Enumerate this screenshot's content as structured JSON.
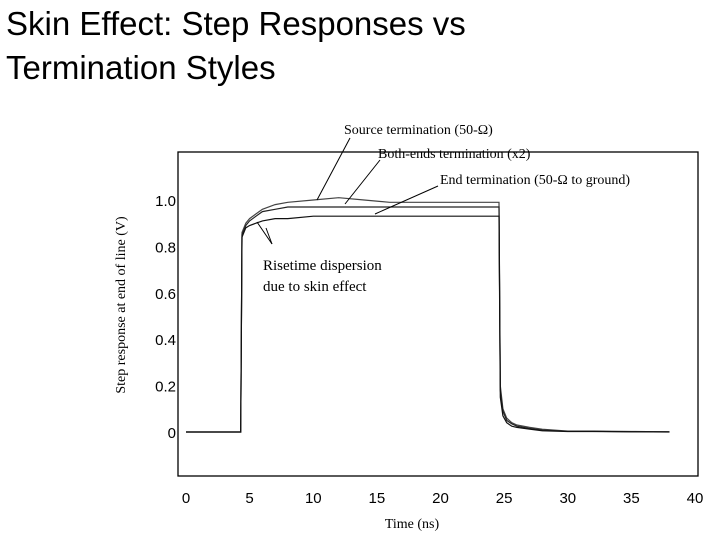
{
  "slide": {
    "title_line1": "Skin Effect: Step Responses vs",
    "title_line2": "Termination Styles"
  },
  "chart_data": {
    "type": "line",
    "xlabel": "Time (ns)",
    "ylabel": "Step response at end of line  (V)",
    "xlim": [
      0,
      40
    ],
    "ylim": [
      -0.15,
      1.2
    ],
    "x_ticks": [
      "0",
      "5",
      "10",
      "15",
      "20",
      "25",
      "30",
      "35",
      "40"
    ],
    "y_ticks": [
      "0",
      "0.2",
      "0.4",
      "0.6",
      "0.8",
      "1.0"
    ],
    "grid": false,
    "annotations": [
      {
        "text": "Source termination (50-Ω)"
      },
      {
        "text": "Both-ends termination (x2)"
      },
      {
        "text": "End termination (50-Ω to ground)"
      },
      {
        "text": "Risetime dispersion"
      },
      {
        "text": "due to skin effect"
      }
    ],
    "series": [
      {
        "x": [
          0,
          4.3,
          4.4,
          4.7,
          5,
          5.5,
          6,
          7,
          8,
          10,
          12,
          14,
          16,
          18,
          20,
          22,
          24.6,
          24.7,
          24.9,
          25.2,
          25.6,
          26,
          27,
          28,
          30,
          32,
          35,
          38
        ],
        "values": [
          0,
          0,
          0.86,
          0.9,
          0.92,
          0.94,
          0.96,
          0.98,
          0.99,
          1.0,
          1.01,
          1.0,
          0.99,
          0.99,
          0.99,
          0.99,
          0.99,
          0.2,
          0.1,
          0.06,
          0.04,
          0.03,
          0.02,
          0.012,
          0.004,
          0.004,
          0.002,
          0.001
        ]
      },
      {
        "x": [
          0,
          4.3,
          4.4,
          4.7,
          5,
          5.5,
          6,
          7,
          8,
          10,
          12,
          14,
          16,
          18,
          20,
          22,
          24.6,
          24.7,
          24.9,
          25.2,
          25.6,
          26,
          27,
          28,
          30,
          32,
          35,
          38
        ],
        "values": [
          0,
          0,
          0.85,
          0.89,
          0.91,
          0.93,
          0.95,
          0.96,
          0.97,
          0.97,
          0.97,
          0.97,
          0.97,
          0.97,
          0.97,
          0.97,
          0.97,
          0.18,
          0.09,
          0.05,
          0.035,
          0.025,
          0.015,
          0.008,
          0.003,
          0.003,
          0.001,
          0.001
        ]
      },
      {
        "x": [
          0,
          4.3,
          4.4,
          4.7,
          5,
          5.5,
          6,
          7,
          8,
          10,
          12,
          14,
          16,
          18,
          20,
          22,
          24.6,
          24.7,
          24.9,
          25.2,
          25.6,
          26,
          27,
          28,
          30,
          32,
          35,
          38
        ],
        "values": [
          0,
          0,
          0.84,
          0.88,
          0.89,
          0.9,
          0.91,
          0.92,
          0.92,
          0.93,
          0.93,
          0.93,
          0.93,
          0.93,
          0.93,
          0.93,
          0.93,
          0.15,
          0.07,
          0.04,
          0.025,
          0.02,
          0.012,
          0.005,
          0.002,
          0.002,
          0.001,
          0.0
        ]
      }
    ]
  }
}
